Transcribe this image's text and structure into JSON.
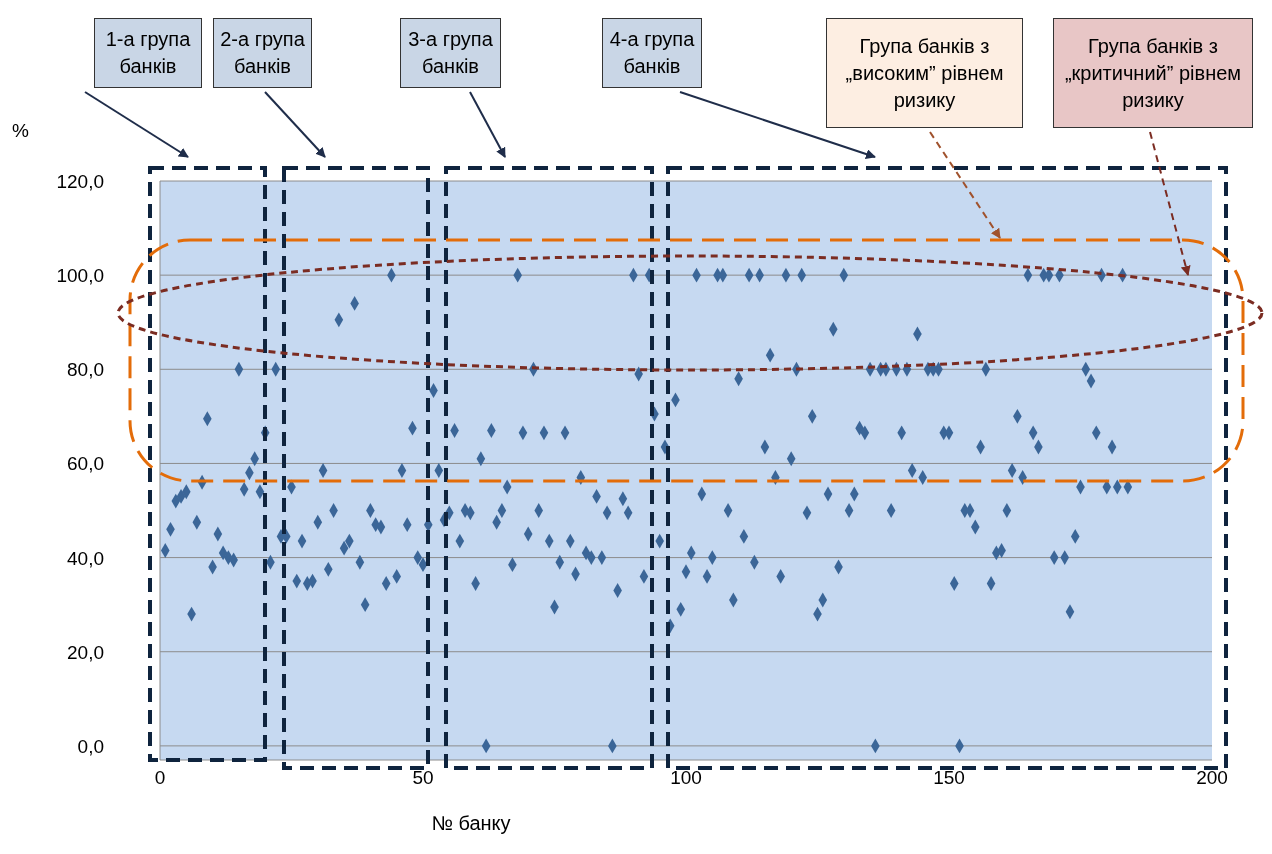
{
  "chart_data": {
    "type": "scatter",
    "xlabel": "№ банку",
    "ylabel": "%",
    "x": [
      1,
      2,
      3,
      4,
      5,
      6,
      7,
      8,
      9,
      10,
      11,
      12,
      13,
      14,
      15,
      16,
      17,
      18,
      19,
      20,
      21,
      22,
      23,
      24,
      25,
      26,
      27,
      28,
      29,
      30,
      31,
      32,
      33,
      34,
      35,
      36,
      37,
      38,
      39,
      40,
      41,
      42,
      43,
      44,
      45,
      46,
      47,
      48,
      49,
      50,
      51,
      52,
      53,
      54,
      55,
      56,
      57,
      58,
      59,
      60,
      61,
      62,
      63,
      64,
      65,
      66,
      67,
      68,
      69,
      70,
      71,
      72,
      73,
      74,
      75,
      76,
      77,
      78,
      79,
      80,
      81,
      82,
      83,
      84,
      85,
      86,
      87,
      88,
      89,
      90,
      91,
      92,
      93,
      94,
      95,
      96,
      97,
      98,
      99,
      100,
      101,
      102,
      103,
      104,
      105,
      106,
      107,
      108,
      109,
      110,
      111,
      112,
      113,
      114,
      115,
      116,
      117,
      118,
      119,
      120,
      121,
      122,
      123,
      124,
      125,
      126,
      127,
      128,
      129,
      130,
      131,
      132,
      133,
      134,
      135,
      136,
      137,
      138,
      139,
      140,
      141,
      142,
      143,
      144,
      145,
      146,
      147,
      148,
      149,
      150,
      151,
      152,
      153,
      154,
      155,
      156,
      157,
      158,
      159,
      160,
      161,
      162,
      163,
      164,
      165,
      166,
      167,
      168,
      169,
      170,
      171,
      172,
      173,
      174,
      175,
      176,
      177,
      178,
      179,
      180,
      181,
      182,
      183,
      184
    ],
    "series": [
      {
        "color": "#3b6698",
        "values": [
          41.5,
          46,
          52,
          53,
          54,
          28,
          47.5,
          56,
          69.5,
          38,
          45,
          41,
          40,
          39.5,
          80,
          54.5,
          58,
          61,
          54,
          66.5,
          39,
          80,
          44.5,
          44.5,
          55,
          35,
          43.5,
          34.5,
          35,
          47.5,
          58.5,
          37.5,
          50,
          90.5,
          42,
          43.5,
          94,
          39,
          30,
          50,
          47,
          46.5,
          34.5,
          100,
          36,
          58.5,
          47,
          67.5,
          40,
          38.5,
          47,
          75.5,
          58.5,
          48,
          49.5,
          67,
          43.5,
          50,
          49.5,
          34.5,
          61,
          0,
          67,
          47.5,
          50,
          55,
          38.5,
          100,
          66.5,
          45,
          80,
          50,
          66.5,
          43.5,
          29.5,
          39,
          66.5,
          43.5,
          36.5,
          57,
          41,
          40,
          53,
          40,
          49.5,
          0,
          33,
          52.5,
          49.5,
          100,
          79,
          36,
          100,
          70.5,
          43.5,
          63.5,
          25.5,
          73.5,
          29,
          37,
          41,
          100,
          53.5,
          36,
          40,
          100,
          100,
          50,
          31,
          78,
          44.5,
          100,
          39,
          100,
          63.5,
          83,
          57,
          36,
          100,
          61,
          80,
          100,
          49.5,
          70,
          28,
          31,
          53.5,
          88.5,
          38,
          100,
          50,
          53.5,
          67.5,
          66.5,
          80,
          0,
          80,
          80,
          50,
          80,
          66.5,
          80,
          58.5,
          87.5,
          57,
          80,
          80,
          80,
          66.5,
          66.5,
          34.5,
          0,
          50,
          50,
          46.5,
          63.5,
          80,
          34.5,
          41,
          41.5,
          50,
          58.5,
          70,
          57,
          100,
          66.5,
          63.5,
          100,
          100,
          40,
          100,
          40,
          28.5,
          44.5,
          55,
          80,
          77.5,
          66.5,
          100,
          55,
          63.5,
          55,
          100,
          55
        ]
      }
    ],
    "xlim": [
      0,
      200
    ],
    "xticks": [
      0,
      50,
      100,
      150,
      200
    ],
    "ylim": [
      -3,
      120
    ],
    "yticks": [
      {
        "value": 0,
        "label": "0,0"
      },
      {
        "value": 20,
        "label": "20,0"
      },
      {
        "value": 40,
        "label": "40,0"
      },
      {
        "value": 60,
        "label": "60,0"
      },
      {
        "value": 80,
        "label": "80,0"
      },
      {
        "value": 100,
        "label": "100,0"
      },
      {
        "value": 120,
        "label": "120,0"
      }
    ],
    "grid": "y",
    "marker": "diamond",
    "annotations": [
      "1-а група банків",
      "2-а група банків",
      "3-а група банків",
      "4-а група банків",
      "Група банків з „високим” рівнем ризику",
      "Група банків з „критичний” рівнем ризику"
    ]
  }
}
